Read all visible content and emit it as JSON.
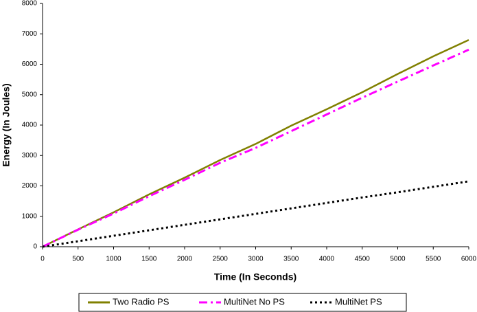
{
  "chart_data": {
    "type": "line",
    "x_label": "Time (In Seconds)",
    "y_label": "Energy (In Joules)",
    "x": [
      0,
      500,
      1000,
      1500,
      2000,
      2500,
      3000,
      3500,
      4000,
      4500,
      5000,
      5500,
      6000
    ],
    "series": [
      {
        "name": "Two Radio PS",
        "color": "#808000",
        "dash": "solid",
        "values": [
          0,
          570,
          1130,
          1720,
          2270,
          2850,
          3380,
          3980,
          4520,
          5080,
          5680,
          6260,
          6800
        ]
      },
      {
        "name": "MultiNet No PS",
        "color": "#ff00ff",
        "dash": "dashdot",
        "values": [
          0,
          560,
          1090,
          1660,
          2200,
          2760,
          3250,
          3800,
          4350,
          4900,
          5430,
          5960,
          6480
        ]
      },
      {
        "name": "MultiNet PS",
        "color": "#000000",
        "dash": "dotted",
        "values": [
          0,
          180,
          360,
          540,
          720,
          900,
          1080,
          1260,
          1440,
          1620,
          1790,
          1970,
          2150
        ]
      }
    ],
    "xlim": [
      0,
      6000
    ],
    "xticks": [
      0,
      500,
      1000,
      1500,
      2000,
      2500,
      3000,
      3500,
      4000,
      4500,
      5000,
      5500,
      6000
    ],
    "ylim": [
      0,
      8000
    ],
    "yticks": [
      0,
      1000,
      2000,
      3000,
      4000,
      5000,
      6000,
      7000,
      8000
    ],
    "grid": false,
    "legend": "bottom"
  }
}
